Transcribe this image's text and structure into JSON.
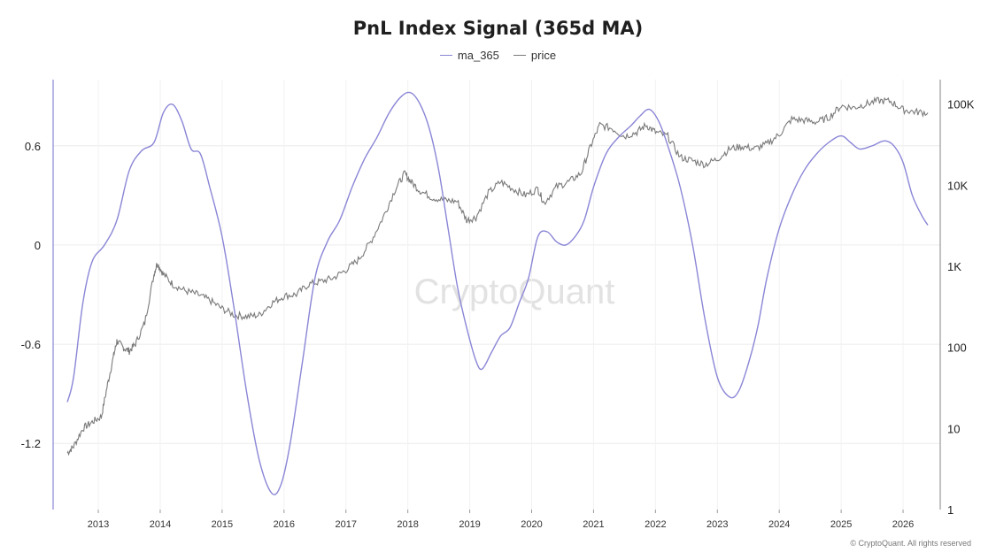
{
  "footer": {
    "copyright": "© CryptoQuant. All rights reserved"
  },
  "watermark": "CryptoQuant",
  "chart_data": {
    "type": "line",
    "title": "PnL Index Signal (365d MA)",
    "legend_position": "top",
    "grid": true,
    "left_axis": {
      "ticks": [
        0.6,
        0,
        -0.6,
        -1.2
      ],
      "tick_labels": [
        "0.6",
        "0",
        "-0.6",
        "-1.2"
      ],
      "range": [
        -1.6,
        1.0
      ]
    },
    "right_axis": {
      "scale": "log",
      "ticks": [
        100000,
        10000,
        1000,
        100,
        10,
        1
      ],
      "tick_labels": [
        "100K",
        "10K",
        "1K",
        "100",
        "10",
        "1"
      ],
      "range": [
        1,
        200000
      ]
    },
    "x_axis": {
      "ticks": [
        2013,
        2014,
        2015,
        2016,
        2017,
        2018,
        2019,
        2020,
        2021,
        2022,
        2023,
        2024,
        2025,
        2026
      ],
      "tick_labels": [
        "2013",
        "2014",
        "2015",
        "2016",
        "2017",
        "2018",
        "2019",
        "2020",
        "2021",
        "2022",
        "2023",
        "2024",
        "2025",
        "2026"
      ],
      "range": [
        2012.27,
        2026.6
      ]
    },
    "series": [
      {
        "name": "ma_365",
        "axis": "left",
        "color": "#8a86d6",
        "x": [
          2012.5,
          2012.6,
          2012.75,
          2012.9,
          2013.1,
          2013.3,
          2013.5,
          2013.7,
          2013.9,
          2014.05,
          2014.2,
          2014.35,
          2014.5,
          2014.65,
          2014.8,
          2015.0,
          2015.2,
          2015.4,
          2015.6,
          2015.8,
          2015.95,
          2016.1,
          2016.3,
          2016.5,
          2016.7,
          2016.9,
          2017.1,
          2017.3,
          2017.5,
          2017.7,
          2017.9,
          2018.05,
          2018.2,
          2018.35,
          2018.5,
          2018.65,
          2018.8,
          2018.95,
          2019.1,
          2019.2,
          2019.35,
          2019.5,
          2019.65,
          2019.8,
          2019.95,
          2020.1,
          2020.25,
          2020.4,
          2020.55,
          2020.7,
          2020.85,
          2021.0,
          2021.2,
          2021.4,
          2021.6,
          2021.75,
          2021.9,
          2022.05,
          2022.2,
          2022.4,
          2022.6,
          2022.8,
          2023.0,
          2023.2,
          2023.35,
          2023.5,
          2023.65,
          2023.8,
          2024.0,
          2024.2,
          2024.4,
          2024.6,
          2024.8,
          2025.0,
          2025.15,
          2025.3,
          2025.5,
          2025.7,
          2025.85,
          2026.0,
          2026.15,
          2026.3,
          2026.4
        ],
        "y": [
          -0.95,
          -0.8,
          -0.35,
          -0.1,
          0.0,
          0.15,
          0.45,
          0.57,
          0.62,
          0.8,
          0.85,
          0.75,
          0.58,
          0.55,
          0.35,
          0.05,
          -0.4,
          -0.9,
          -1.3,
          -1.5,
          -1.45,
          -1.2,
          -0.7,
          -0.2,
          0.02,
          0.15,
          0.35,
          0.52,
          0.65,
          0.8,
          0.9,
          0.92,
          0.85,
          0.7,
          0.45,
          0.1,
          -0.25,
          -0.5,
          -0.7,
          -0.75,
          -0.65,
          -0.55,
          -0.5,
          -0.35,
          -0.2,
          0.05,
          0.08,
          0.02,
          0.0,
          0.05,
          0.15,
          0.35,
          0.55,
          0.65,
          0.72,
          0.78,
          0.82,
          0.75,
          0.6,
          0.35,
          0.0,
          -0.45,
          -0.8,
          -0.92,
          -0.88,
          -0.72,
          -0.5,
          -0.2,
          0.1,
          0.3,
          0.45,
          0.55,
          0.62,
          0.66,
          0.62,
          0.58,
          0.6,
          0.63,
          0.6,
          0.5,
          0.3,
          0.18,
          0.12
        ]
      },
      {
        "name": "price",
        "axis": "right",
        "color": "#7a7a7a",
        "x": [
          2012.5,
          2012.6,
          2012.75,
          2012.9,
          2013.05,
          2013.15,
          2013.25,
          2013.3,
          2013.4,
          2013.5,
          2013.6,
          2013.75,
          2013.9,
          2013.95,
          2014.05,
          2014.2,
          2014.4,
          2014.6,
          2014.8,
          2015.0,
          2015.2,
          2015.4,
          2015.6,
          2015.8,
          2016.0,
          2016.2,
          2016.4,
          2016.6,
          2016.8,
          2017.0,
          2017.2,
          2017.4,
          2017.6,
          2017.8,
          2017.95,
          2018.05,
          2018.2,
          2018.4,
          2018.6,
          2018.8,
          2018.95,
          2019.1,
          2019.3,
          2019.5,
          2019.7,
          2019.9,
          2020.1,
          2020.2,
          2020.4,
          2020.6,
          2020.8,
          2020.95,
          2021.1,
          2021.3,
          2021.5,
          2021.7,
          2021.85,
          2022.0,
          2022.2,
          2022.4,
          2022.6,
          2022.8,
          2023.0,
          2023.2,
          2023.4,
          2023.6,
          2023.8,
          2024.0,
          2024.2,
          2024.4,
          2024.6,
          2024.8,
          2025.0,
          2025.2,
          2025.4,
          2025.6,
          2025.8,
          2026.0,
          2026.2,
          2026.4
        ],
        "y": [
          5,
          6,
          10,
          12,
          14,
          35,
          80,
          120,
          100,
          90,
          110,
          200,
          800,
          1100,
          800,
          600,
          500,
          450,
          380,
          300,
          250,
          240,
          250,
          350,
          430,
          450,
          600,
          650,
          720,
          900,
          1200,
          2000,
          4000,
          9000,
          14000,
          11000,
          8500,
          7000,
          6500,
          6300,
          3700,
          4000,
          8000,
          11000,
          9000,
          7500,
          9000,
          6000,
          9500,
          11000,
          14000,
          30000,
          55000,
          50000,
          40000,
          45000,
          55000,
          45000,
          40000,
          22000,
          20000,
          18000,
          21000,
          28000,
          30000,
          28000,
          32000,
          42000,
          65000,
          63000,
          60000,
          68000,
          95000,
          90000,
          100000,
          110000,
          108000,
          85000,
          80000,
          78000
        ]
      }
    ]
  }
}
